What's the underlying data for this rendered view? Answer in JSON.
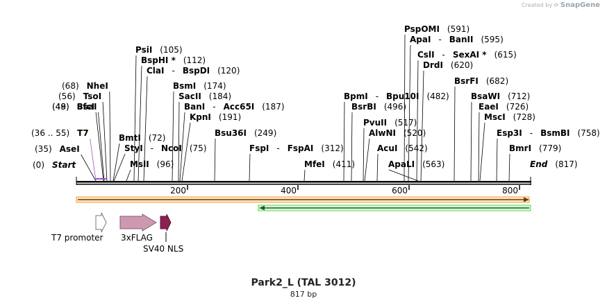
{
  "credit": {
    "prefix": "Created by",
    "brand": "SnapGene"
  },
  "title": "Park2_L (TAL 3012)",
  "subtitle": "817 bp",
  "sites": [
    {
      "name": "Start",
      "pos": "(0)",
      "numFirst": true,
      "italic": true
    },
    {
      "name": "AseI",
      "pos": "(35)",
      "numFirst": true
    },
    {
      "name": "T7",
      "pos": "(36 .. 55)",
      "numFirst": true,
      "color": "#a24dcc"
    },
    {
      "name": "SfcI",
      "pos": "(48)",
      "numFirst": true
    },
    {
      "name": "BsaI",
      "pos": "(49)",
      "numFirst": true
    },
    {
      "name": "TsoI",
      "pos": "(56)",
      "numFirst": true
    },
    {
      "name": "NheI",
      "pos": "(68)",
      "numFirst": true
    },
    {
      "name": "BmtI",
      "pos": "(72)"
    },
    {
      "name": "StyI",
      "name2": "NcoI",
      "pos": "(75)"
    },
    {
      "name": "MslI",
      "pos": "(96)"
    },
    {
      "name": "PsiI",
      "pos": "(105)"
    },
    {
      "name": "BspHI *",
      "pos": "(112)"
    },
    {
      "name": "ClaI",
      "name2": "BspDI",
      "pos": "(120)"
    },
    {
      "name": "BsmI",
      "pos": "(174)"
    },
    {
      "name": "SacII",
      "pos": "(184)"
    },
    {
      "name": "BanI",
      "name2": "Acc65I",
      "pos": "(187)"
    },
    {
      "name": "KpnI",
      "pos": "(191)"
    },
    {
      "name": "Bsu36I",
      "pos": "(249)"
    },
    {
      "name": "FspI",
      "name2": "FspAI",
      "pos": "(312)"
    },
    {
      "name": "MfeI",
      "pos": "(411)"
    },
    {
      "name": "BpmI",
      "name2": "Bpu10I",
      "pos": "(482)"
    },
    {
      "name": "BsrBI",
      "pos": "(496)"
    },
    {
      "name": "PvuII",
      "pos": "(517)"
    },
    {
      "name": "AlwNI",
      "pos": "(520)"
    },
    {
      "name": "AcuI",
      "pos": "(542)"
    },
    {
      "name": "ApaLI",
      "pos": "(563)"
    },
    {
      "name": "PspOMI",
      "pos": "(591)"
    },
    {
      "name": "ApaI",
      "name2": "BanII",
      "pos": "(595)"
    },
    {
      "name": "CslI",
      "name2": "SexAI *",
      "pos": "(615)"
    },
    {
      "name": "DrdI",
      "pos": "(620)"
    },
    {
      "name": "BsrFI",
      "pos": "(682)"
    },
    {
      "name": "BsaWI",
      "pos": "(712)"
    },
    {
      "name": "EaeI",
      "pos": "(726)"
    },
    {
      "name": "MscI",
      "pos": "(728)"
    },
    {
      "name": "Esp3I",
      "name2": "BsmBI",
      "pos": "(758)"
    },
    {
      "name": "BmrI",
      "pos": "(779)"
    },
    {
      "name": "End",
      "pos": "(817)",
      "italic": true
    }
  ],
  "ruler": {
    "ticks": [
      "200",
      "400",
      "600",
      "800"
    ]
  },
  "features": [
    {
      "name": "T7 promoter",
      "color": "#ffffff",
      "stroke": "#777777"
    },
    {
      "name": "3xFLAG",
      "color": "#cc99b1",
      "stroke": "#8a5a72"
    },
    {
      "name": "SV40 NLS",
      "color": "#8b2252",
      "stroke": "#5a1535"
    }
  ],
  "colors": {
    "backbone": "#000000",
    "orangeArrow": "#f2a23a",
    "greenArrow": "#5cd65c",
    "t7": "#a24dcc"
  }
}
